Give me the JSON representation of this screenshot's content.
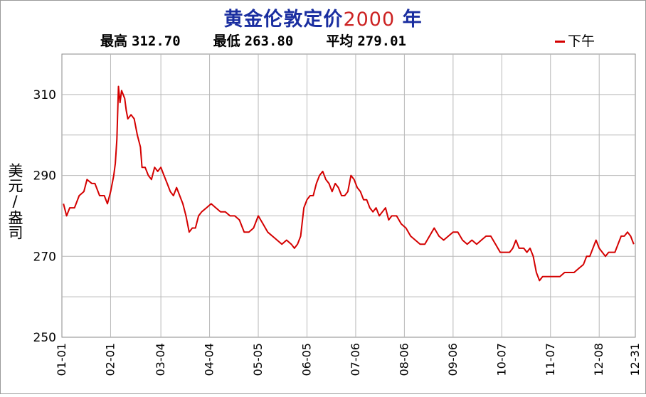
{
  "chart_data": {
    "type": "line",
    "title_main": "黄金伦敦定价",
    "title_year": "2000",
    "title_suffix": "年",
    "ylabel": "美元/盎司",
    "stats": [
      {
        "label": "最高",
        "value": "312.70"
      },
      {
        "label": "最低",
        "value": "263.80"
      },
      {
        "label": "平均",
        "value": "279.01"
      }
    ],
    "legend": [
      "下午"
    ],
    "legend_position": "top-right",
    "grid": true,
    "ylim": [
      250,
      320
    ],
    "y_ticks": [
      250,
      270,
      290,
      310
    ],
    "xlim": [
      0,
      365
    ],
    "x_ticks": [
      {
        "label": "01-01",
        "day": 0
      },
      {
        "label": "02-01",
        "day": 31
      },
      {
        "label": "03-04",
        "day": 63
      },
      {
        "label": "04-04",
        "day": 94
      },
      {
        "label": "05-05",
        "day": 125
      },
      {
        "label": "06-05",
        "day": 156
      },
      {
        "label": "07-06",
        "day": 187
      },
      {
        "label": "08-06",
        "day": 218
      },
      {
        "label": "09-06",
        "day": 249
      },
      {
        "label": "10-07",
        "day": 280
      },
      {
        "label": "11-07",
        "day": 311
      },
      {
        "label": "12-08",
        "day": 342
      },
      {
        "label": "12-31",
        "day": 365
      }
    ],
    "series": [
      {
        "name": "下午",
        "color": "#d40000",
        "points": [
          [
            1,
            283
          ],
          [
            3,
            280
          ],
          [
            5,
            282
          ],
          [
            8,
            282
          ],
          [
            11,
            285
          ],
          [
            14,
            286
          ],
          [
            16,
            289
          ],
          [
            19,
            288
          ],
          [
            21,
            288
          ],
          [
            24,
            285
          ],
          [
            27,
            285
          ],
          [
            29,
            283
          ],
          [
            31,
            286
          ],
          [
            33,
            290
          ],
          [
            34,
            293
          ],
          [
            35,
            299
          ],
          [
            36,
            312
          ],
          [
            37,
            308
          ],
          [
            38,
            311
          ],
          [
            39,
            310
          ],
          [
            40,
            309
          ],
          [
            41,
            306
          ],
          [
            42,
            304
          ],
          [
            44,
            305
          ],
          [
            46,
            304
          ],
          [
            48,
            300
          ],
          [
            50,
            297
          ],
          [
            51,
            292
          ],
          [
            53,
            292
          ],
          [
            55,
            290
          ],
          [
            57,
            289
          ],
          [
            59,
            292
          ],
          [
            61,
            291
          ],
          [
            63,
            292
          ],
          [
            65,
            290
          ],
          [
            67,
            288
          ],
          [
            69,
            286
          ],
          [
            71,
            285
          ],
          [
            73,
            287
          ],
          [
            75,
            285
          ],
          [
            77,
            283
          ],
          [
            79,
            280
          ],
          [
            81,
            276
          ],
          [
            83,
            277
          ],
          [
            85,
            277
          ],
          [
            87,
            280
          ],
          [
            89,
            281
          ],
          [
            92,
            282
          ],
          [
            95,
            283
          ],
          [
            98,
            282
          ],
          [
            101,
            281
          ],
          [
            104,
            281
          ],
          [
            107,
            280
          ],
          [
            110,
            280
          ],
          [
            113,
            279
          ],
          [
            116,
            276
          ],
          [
            119,
            276
          ],
          [
            122,
            277
          ],
          [
            125,
            280
          ],
          [
            128,
            278
          ],
          [
            131,
            276
          ],
          [
            134,
            275
          ],
          [
            137,
            274
          ],
          [
            140,
            273
          ],
          [
            143,
            274
          ],
          [
            146,
            273
          ],
          [
            148,
            272
          ],
          [
            150,
            273
          ],
          [
            152,
            275
          ],
          [
            154,
            282
          ],
          [
            156,
            284
          ],
          [
            158,
            285
          ],
          [
            160,
            285
          ],
          [
            162,
            288
          ],
          [
            164,
            290
          ],
          [
            166,
            291
          ],
          [
            168,
            289
          ],
          [
            170,
            288
          ],
          [
            172,
            286
          ],
          [
            174,
            288
          ],
          [
            176,
            287
          ],
          [
            178,
            285
          ],
          [
            180,
            285
          ],
          [
            182,
            286
          ],
          [
            184,
            290
          ],
          [
            186,
            289
          ],
          [
            188,
            287
          ],
          [
            190,
            286
          ],
          [
            192,
            284
          ],
          [
            194,
            284
          ],
          [
            196,
            282
          ],
          [
            198,
            281
          ],
          [
            200,
            282
          ],
          [
            202,
            280
          ],
          [
            204,
            281
          ],
          [
            206,
            282
          ],
          [
            208,
            279
          ],
          [
            210,
            280
          ],
          [
            213,
            280
          ],
          [
            216,
            278
          ],
          [
            219,
            277
          ],
          [
            222,
            275
          ],
          [
            225,
            274
          ],
          [
            228,
            273
          ],
          [
            231,
            273
          ],
          [
            234,
            275
          ],
          [
            237,
            277
          ],
          [
            240,
            275
          ],
          [
            243,
            274
          ],
          [
            246,
            275
          ],
          [
            249,
            276
          ],
          [
            252,
            276
          ],
          [
            255,
            274
          ],
          [
            258,
            273
          ],
          [
            261,
            274
          ],
          [
            264,
            273
          ],
          [
            267,
            274
          ],
          [
            270,
            275
          ],
          [
            273,
            275
          ],
          [
            276,
            273
          ],
          [
            279,
            271
          ],
          [
            282,
            271
          ],
          [
            285,
            271
          ],
          [
            287,
            272
          ],
          [
            289,
            274
          ],
          [
            291,
            272
          ],
          [
            294,
            272
          ],
          [
            296,
            271
          ],
          [
            298,
            272
          ],
          [
            300,
            270
          ],
          [
            302,
            266
          ],
          [
            304,
            264
          ],
          [
            306,
            265
          ],
          [
            308,
            265
          ],
          [
            311,
            265
          ],
          [
            314,
            265
          ],
          [
            317,
            265
          ],
          [
            320,
            266
          ],
          [
            323,
            266
          ],
          [
            326,
            266
          ],
          [
            329,
            267
          ],
          [
            332,
            268
          ],
          [
            334,
            270
          ],
          [
            336,
            270
          ],
          [
            338,
            272
          ],
          [
            340,
            274
          ],
          [
            342,
            272
          ],
          [
            344,
            271
          ],
          [
            346,
            270
          ],
          [
            348,
            271
          ],
          [
            350,
            271
          ],
          [
            352,
            271
          ],
          [
            354,
            273
          ],
          [
            356,
            275
          ],
          [
            358,
            275
          ],
          [
            360,
            276
          ],
          [
            362,
            275
          ],
          [
            364,
            273
          ]
        ]
      }
    ]
  }
}
